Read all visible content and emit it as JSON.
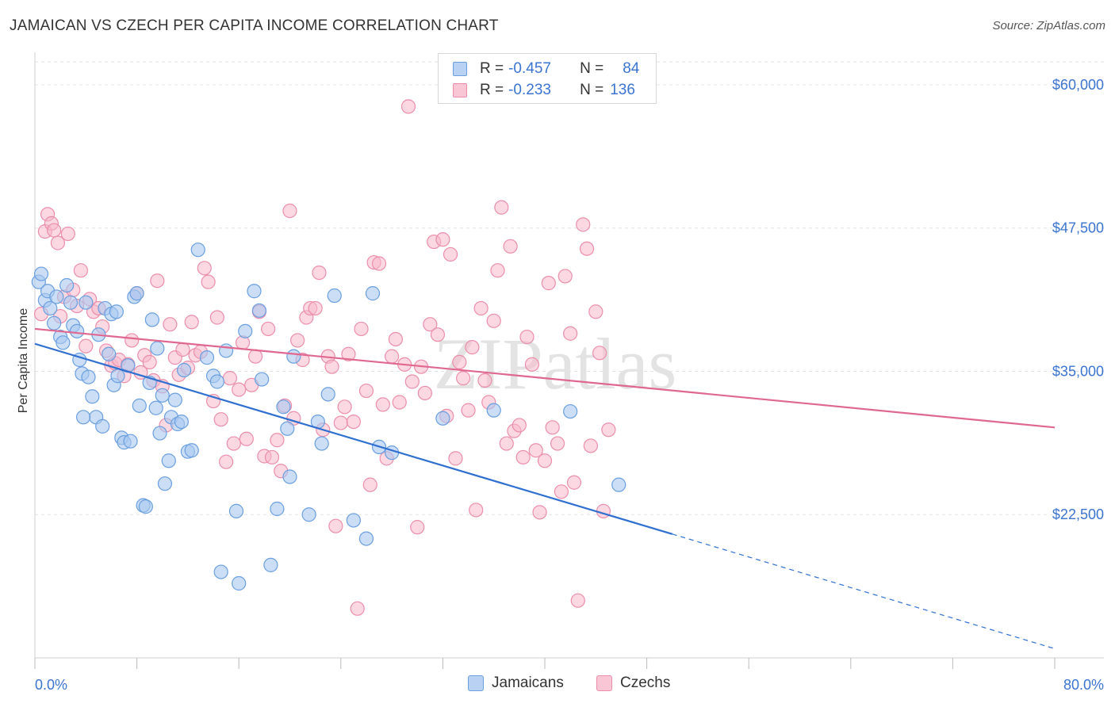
{
  "title": "JAMAICAN VS CZECH PER CAPITA INCOME CORRELATION CHART",
  "source": "Source: ZipAtlas.com",
  "watermark": "ZIPatlas",
  "legend": {
    "rows": [
      {
        "r_label": "R =",
        "r_value": "-0.457",
        "n_label": "N =",
        "n_value": "84"
      },
      {
        "r_label": "R =",
        "r_value": "-0.233",
        "n_label": "N =",
        "n_value": "136"
      }
    ]
  },
  "bottom_legend": {
    "jamaicans": "Jamaicans",
    "czechs": "Czechs"
  },
  "colors": {
    "jamaican_fill": "#a8c8f0",
    "jamaican_stroke": "#6a9fe0",
    "jamaican_line": "#2f6fd0",
    "czech_fill": "#f7b8ca",
    "czech_stroke": "#ec8eab",
    "czech_line": "#e06890",
    "axis_text": "#3b74d0"
  },
  "chart_data": {
    "type": "scatter",
    "title": "JAMAICAN VS CZECH PER CAPITA INCOME CORRELATION CHART",
    "ylabel": "Per Capita Income",
    "xlim": [
      0,
      80
    ],
    "ylim": [
      10000,
      62000
    ],
    "x_tick_labels": [
      "0.0%",
      "80.0%"
    ],
    "y_ticks": [
      22500,
      35000,
      47500,
      60000
    ],
    "y_tick_labels": [
      "$22,500",
      "$35,000",
      "$47,500",
      "$60,000"
    ],
    "grid": true,
    "series": [
      {
        "name": "Jamaicans",
        "trend": {
          "x0": 0,
          "y0": 37400,
          "x1": 50,
          "y1": 20800,
          "dashed_to_x": 80,
          "dashed_to_y": 10800
        },
        "points": [
          [
            0.3,
            42800
          ],
          [
            0.5,
            43500
          ],
          [
            0.8,
            41200
          ],
          [
            1.0,
            42000
          ],
          [
            1.2,
            40500
          ],
          [
            1.5,
            39200
          ],
          [
            1.7,
            41500
          ],
          [
            2.0,
            38000
          ],
          [
            2.2,
            37500
          ],
          [
            2.5,
            42500
          ],
          [
            2.8,
            41000
          ],
          [
            3.0,
            39000
          ],
          [
            3.3,
            38500
          ],
          [
            3.5,
            36000
          ],
          [
            3.7,
            34800
          ],
          [
            4.0,
            41000
          ],
          [
            4.2,
            34500
          ],
          [
            4.5,
            32800
          ],
          [
            4.8,
            31000
          ],
          [
            5.0,
            38200
          ],
          [
            5.3,
            30200
          ],
          [
            5.5,
            40500
          ],
          [
            5.8,
            36500
          ],
          [
            6.0,
            40000
          ],
          [
            6.2,
            33800
          ],
          [
            6.5,
            34600
          ],
          [
            6.8,
            29200
          ],
          [
            7.0,
            28800
          ],
          [
            7.3,
            35500
          ],
          [
            7.5,
            28900
          ],
          [
            7.8,
            41500
          ],
          [
            8.0,
            41800
          ],
          [
            8.2,
            32000
          ],
          [
            8.5,
            23300
          ],
          [
            8.7,
            23200
          ],
          [
            9.0,
            34000
          ],
          [
            9.2,
            39500
          ],
          [
            9.5,
            31800
          ],
          [
            9.8,
            29600
          ],
          [
            10.0,
            32900
          ],
          [
            10.2,
            25200
          ],
          [
            10.5,
            27200
          ],
          [
            10.7,
            31000
          ],
          [
            11.0,
            32500
          ],
          [
            11.2,
            30400
          ],
          [
            11.5,
            30600
          ],
          [
            11.7,
            35100
          ],
          [
            12.0,
            28000
          ],
          [
            12.3,
            28100
          ],
          [
            12.8,
            45600
          ],
          [
            14.0,
            34600
          ],
          [
            14.3,
            34100
          ],
          [
            14.6,
            17500
          ],
          [
            15.0,
            36800
          ],
          [
            15.8,
            22800
          ],
          [
            16.0,
            16500
          ],
          [
            16.5,
            38500
          ],
          [
            17.2,
            42000
          ],
          [
            17.6,
            40300
          ],
          [
            17.8,
            34300
          ],
          [
            18.5,
            18100
          ],
          [
            19.0,
            23000
          ],
          [
            19.5,
            31900
          ],
          [
            19.8,
            30000
          ],
          [
            20.0,
            25800
          ],
          [
            20.3,
            36300
          ],
          [
            21.5,
            22500
          ],
          [
            22.2,
            30600
          ],
          [
            22.5,
            28700
          ],
          [
            23.0,
            33000
          ],
          [
            23.5,
            41600
          ],
          [
            25.0,
            22000
          ],
          [
            26.0,
            20400
          ],
          [
            26.5,
            41800
          ],
          [
            27.0,
            28400
          ],
          [
            28.0,
            27900
          ],
          [
            3.8,
            31000
          ],
          [
            6.4,
            40200
          ],
          [
            9.6,
            37000
          ],
          [
            13.5,
            36200
          ],
          [
            32.0,
            30900
          ],
          [
            36.0,
            31600
          ],
          [
            42.0,
            31500
          ],
          [
            45.8,
            25100
          ]
        ]
      },
      {
        "name": "Czechs",
        "trend": {
          "x0": 0,
          "y0": 38700,
          "x1": 80,
          "y1": 30100
        },
        "points": [
          [
            0.5,
            40000
          ],
          [
            0.8,
            47200
          ],
          [
            1.0,
            48700
          ],
          [
            1.3,
            47900
          ],
          [
            1.5,
            47300
          ],
          [
            1.8,
            46200
          ],
          [
            2.0,
            39800
          ],
          [
            2.3,
            41500
          ],
          [
            2.6,
            47000
          ],
          [
            3.0,
            42100
          ],
          [
            3.3,
            40700
          ],
          [
            3.6,
            43800
          ],
          [
            4.0,
            37200
          ],
          [
            4.3,
            41300
          ],
          [
            4.6,
            40200
          ],
          [
            5.0,
            40500
          ],
          [
            5.3,
            38900
          ],
          [
            5.6,
            36800
          ],
          [
            6.0,
            35500
          ],
          [
            6.3,
            35700
          ],
          [
            6.6,
            36000
          ],
          [
            7.0,
            34600
          ],
          [
            7.3,
            35600
          ],
          [
            7.6,
            37700
          ],
          [
            8.0,
            41800
          ],
          [
            8.3,
            34900
          ],
          [
            8.6,
            36400
          ],
          [
            9.0,
            35800
          ],
          [
            9.3,
            34200
          ],
          [
            9.6,
            42900
          ],
          [
            10.0,
            33700
          ],
          [
            10.3,
            30300
          ],
          [
            10.6,
            39100
          ],
          [
            11.0,
            36200
          ],
          [
            11.3,
            34700
          ],
          [
            11.6,
            36900
          ],
          [
            12.0,
            35300
          ],
          [
            12.3,
            39300
          ],
          [
            12.6,
            36400
          ],
          [
            13.0,
            36700
          ],
          [
            13.3,
            44000
          ],
          [
            13.6,
            42800
          ],
          [
            14.0,
            32400
          ],
          [
            14.3,
            39700
          ],
          [
            14.6,
            30800
          ],
          [
            15.0,
            27100
          ],
          [
            15.3,
            34400
          ],
          [
            15.6,
            28700
          ],
          [
            16.0,
            33400
          ],
          [
            16.3,
            37500
          ],
          [
            16.6,
            29100
          ],
          [
            17.0,
            33800
          ],
          [
            17.3,
            36300
          ],
          [
            17.6,
            40200
          ],
          [
            18.0,
            27600
          ],
          [
            18.3,
            38700
          ],
          [
            18.6,
            27500
          ],
          [
            19.0,
            29000
          ],
          [
            19.3,
            26300
          ],
          [
            19.6,
            32000
          ],
          [
            20.0,
            49000
          ],
          [
            20.3,
            30900
          ],
          [
            20.6,
            37700
          ],
          [
            21.0,
            36000
          ],
          [
            21.3,
            39700
          ],
          [
            21.6,
            40500
          ],
          [
            22.0,
            40500
          ],
          [
            22.3,
            43600
          ],
          [
            22.6,
            29900
          ],
          [
            23.0,
            36300
          ],
          [
            23.3,
            35400
          ],
          [
            23.6,
            21500
          ],
          [
            24.0,
            30500
          ],
          [
            24.3,
            31900
          ],
          [
            24.6,
            36500
          ],
          [
            25.0,
            30600
          ],
          [
            25.3,
            14300
          ],
          [
            25.6,
            38700
          ],
          [
            26.0,
            33300
          ],
          [
            26.3,
            25100
          ],
          [
            26.6,
            44500
          ],
          [
            27.0,
            44400
          ],
          [
            27.3,
            32100
          ],
          [
            27.6,
            27400
          ],
          [
            28.0,
            36300
          ],
          [
            28.3,
            37800
          ],
          [
            28.6,
            32300
          ],
          [
            29.0,
            35600
          ],
          [
            29.3,
            58100
          ],
          [
            29.6,
            34100
          ],
          [
            30.0,
            21400
          ],
          [
            30.3,
            35400
          ],
          [
            30.6,
            33100
          ],
          [
            31.0,
            39100
          ],
          [
            31.3,
            46300
          ],
          [
            31.6,
            38200
          ],
          [
            32.0,
            46500
          ],
          [
            32.3,
            31100
          ],
          [
            32.6,
            45200
          ],
          [
            33.0,
            27400
          ],
          [
            33.3,
            35800
          ],
          [
            33.6,
            34400
          ],
          [
            34.0,
            31600
          ],
          [
            34.3,
            37100
          ],
          [
            34.6,
            22900
          ],
          [
            35.0,
            40500
          ],
          [
            35.3,
            34200
          ],
          [
            35.6,
            32300
          ],
          [
            36.0,
            39400
          ],
          [
            36.3,
            43800
          ],
          [
            36.6,
            49300
          ],
          [
            37.0,
            28700
          ],
          [
            37.3,
            45900
          ],
          [
            37.6,
            29800
          ],
          [
            38.0,
            30300
          ],
          [
            38.3,
            27500
          ],
          [
            38.6,
            38000
          ],
          [
            39.0,
            35600
          ],
          [
            39.3,
            28100
          ],
          [
            39.6,
            22700
          ],
          [
            40.0,
            27200
          ],
          [
            40.3,
            42700
          ],
          [
            40.6,
            30100
          ],
          [
            41.0,
            28700
          ],
          [
            41.3,
            24500
          ],
          [
            41.6,
            43300
          ],
          [
            42.0,
            38300
          ],
          [
            42.3,
            25300
          ],
          [
            42.6,
            15000
          ],
          [
            43.0,
            47800
          ],
          [
            43.3,
            45700
          ],
          [
            43.6,
            28500
          ],
          [
            44.0,
            40200
          ],
          [
            44.3,
            36600
          ],
          [
            44.6,
            22800
          ],
          [
            45.0,
            29900
          ]
        ]
      }
    ]
  }
}
